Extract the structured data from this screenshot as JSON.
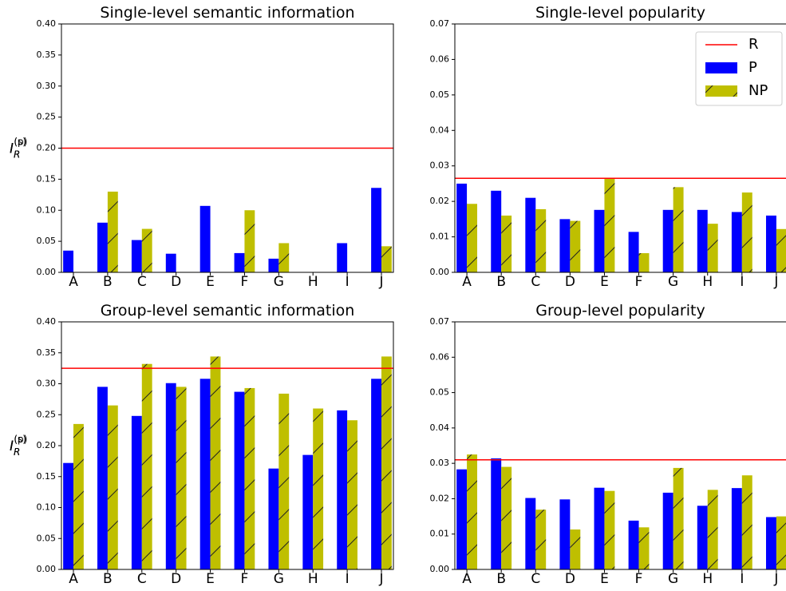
{
  "chart_data": [
    {
      "type": "bar",
      "title": "Single-level semantic information",
      "ylabel": {
        "main": "I",
        "sub": "R",
        "sup": "(s)"
      },
      "categories": [
        "A",
        "B",
        "C",
        "D",
        "E",
        "F",
        "G",
        "H",
        "I",
        "J"
      ],
      "series": [
        {
          "color": "#0000ff",
          "hatch": false,
          "values": [
            0.035,
            0.08,
            0.052,
            0.03,
            0.107,
            0.031,
            0.022,
            0,
            0.047,
            0.136
          ]
        },
        {
          "color": "#bfbf00",
          "hatch": true,
          "values": [
            0,
            0.13,
            0.07,
            0,
            0,
            0.1,
            0.047,
            0,
            0,
            0.042
          ]
        }
      ],
      "reference": {
        "color": "#ff0000",
        "value": 0.2
      },
      "ylim": [
        0,
        0.4
      ],
      "yticks": [
        {
          "value": 0,
          "label": "0.00"
        },
        0.05,
        {
          "value": 0.1,
          "label": "0.10"
        },
        0.15,
        {
          "value": 0.2,
          "label": "0.20"
        },
        0.25,
        {
          "value": 0.3,
          "label": "0.30"
        },
        0.35,
        {
          "value": 0.4,
          "label": "0.40"
        }
      ]
    },
    {
      "type": "bar",
      "title": "Single-level popularity",
      "ylabel": {
        "main": "I",
        "sub": "R",
        "sup": "(p)"
      },
      "categories": [
        "A",
        "B",
        "C",
        "D",
        "E",
        "F",
        "G",
        "H",
        "I",
        "J"
      ],
      "series": [
        {
          "name": "P",
          "color": "#0000ff",
          "hatch": false,
          "values": [
            0.025,
            0.023,
            0.021,
            0.015,
            0.0176,
            0.0114,
            0.0176,
            0.0176,
            0.017,
            0.016
          ]
        },
        {
          "name": "NP",
          "color": "#bfbf00",
          "hatch": true,
          "values": [
            0.0193,
            0.016,
            0.0178,
            0.0145,
            0.0265,
            0.0054,
            0.024,
            0.0137,
            0.0225,
            0.0122
          ]
        }
      ],
      "reference": {
        "name": "R",
        "color": "#ff0000",
        "value": 0.0265
      },
      "legend": "upper right",
      "ylim": [
        0,
        0.07
      ],
      "yticks": [
        {
          "value": 0,
          "label": "0.00"
        },
        0.01,
        0.02,
        0.03,
        0.04,
        0.05,
        0.06,
        0.07
      ]
    },
    {
      "type": "bar",
      "title": "Group-level semantic information",
      "ylabel": {
        "main": "I",
        "sub": "R",
        "sup": "(s)"
      },
      "categories": [
        "A",
        "B",
        "C",
        "D",
        "E",
        "F",
        "G",
        "H",
        "I",
        "J"
      ],
      "series": [
        {
          "color": "#0000ff",
          "hatch": false,
          "values": [
            0.172,
            0.295,
            0.248,
            0.301,
            0.308,
            0.287,
            0.163,
            0.185,
            0.257,
            0.308
          ]
        },
        {
          "color": "#bfbf00",
          "hatch": true,
          "values": [
            0.235,
            0.265,
            0.332,
            0.295,
            0.344,
            0.293,
            0.284,
            0.26,
            0.241,
            0.344
          ]
        }
      ],
      "reference": {
        "color": "#ff0000",
        "value": 0.325
      },
      "ylim": [
        0,
        0.4
      ],
      "yticks": [
        {
          "value": 0,
          "label": "0.00"
        },
        0.05,
        {
          "value": 0.1,
          "label": "0.10"
        },
        0.15,
        {
          "value": 0.2,
          "label": "0.20"
        },
        0.25,
        {
          "value": 0.3,
          "label": "0.30"
        },
        0.35,
        {
          "value": 0.4,
          "label": "0.40"
        }
      ]
    },
    {
      "type": "bar",
      "title": "Group-level popularity",
      "ylabel": {
        "main": "I",
        "sub": "R",
        "sup": "(p)"
      },
      "categories": [
        "A",
        "B",
        "C",
        "D",
        "E",
        "F",
        "G",
        "H",
        "I",
        "J"
      ],
      "series": [
        {
          "color": "#0000ff",
          "hatch": false,
          "values": [
            0.0283,
            0.0314,
            0.0202,
            0.0198,
            0.0231,
            0.0138,
            0.0217,
            0.018,
            0.023,
            0.0148
          ]
        },
        {
          "color": "#bfbf00",
          "hatch": true,
          "values": [
            0.0325,
            0.029,
            0.0169,
            0.0113,
            0.0222,
            0.0119,
            0.0287,
            0.0225,
            0.0266,
            0.015
          ]
        }
      ],
      "reference": {
        "color": "#ff0000",
        "value": 0.031
      },
      "ylim": [
        0,
        0.07
      ],
      "yticks": [
        {
          "value": 0,
          "label": "0.00"
        },
        0.01,
        0.02,
        0.03,
        0.04,
        0.05,
        0.06,
        0.07
      ]
    }
  ]
}
